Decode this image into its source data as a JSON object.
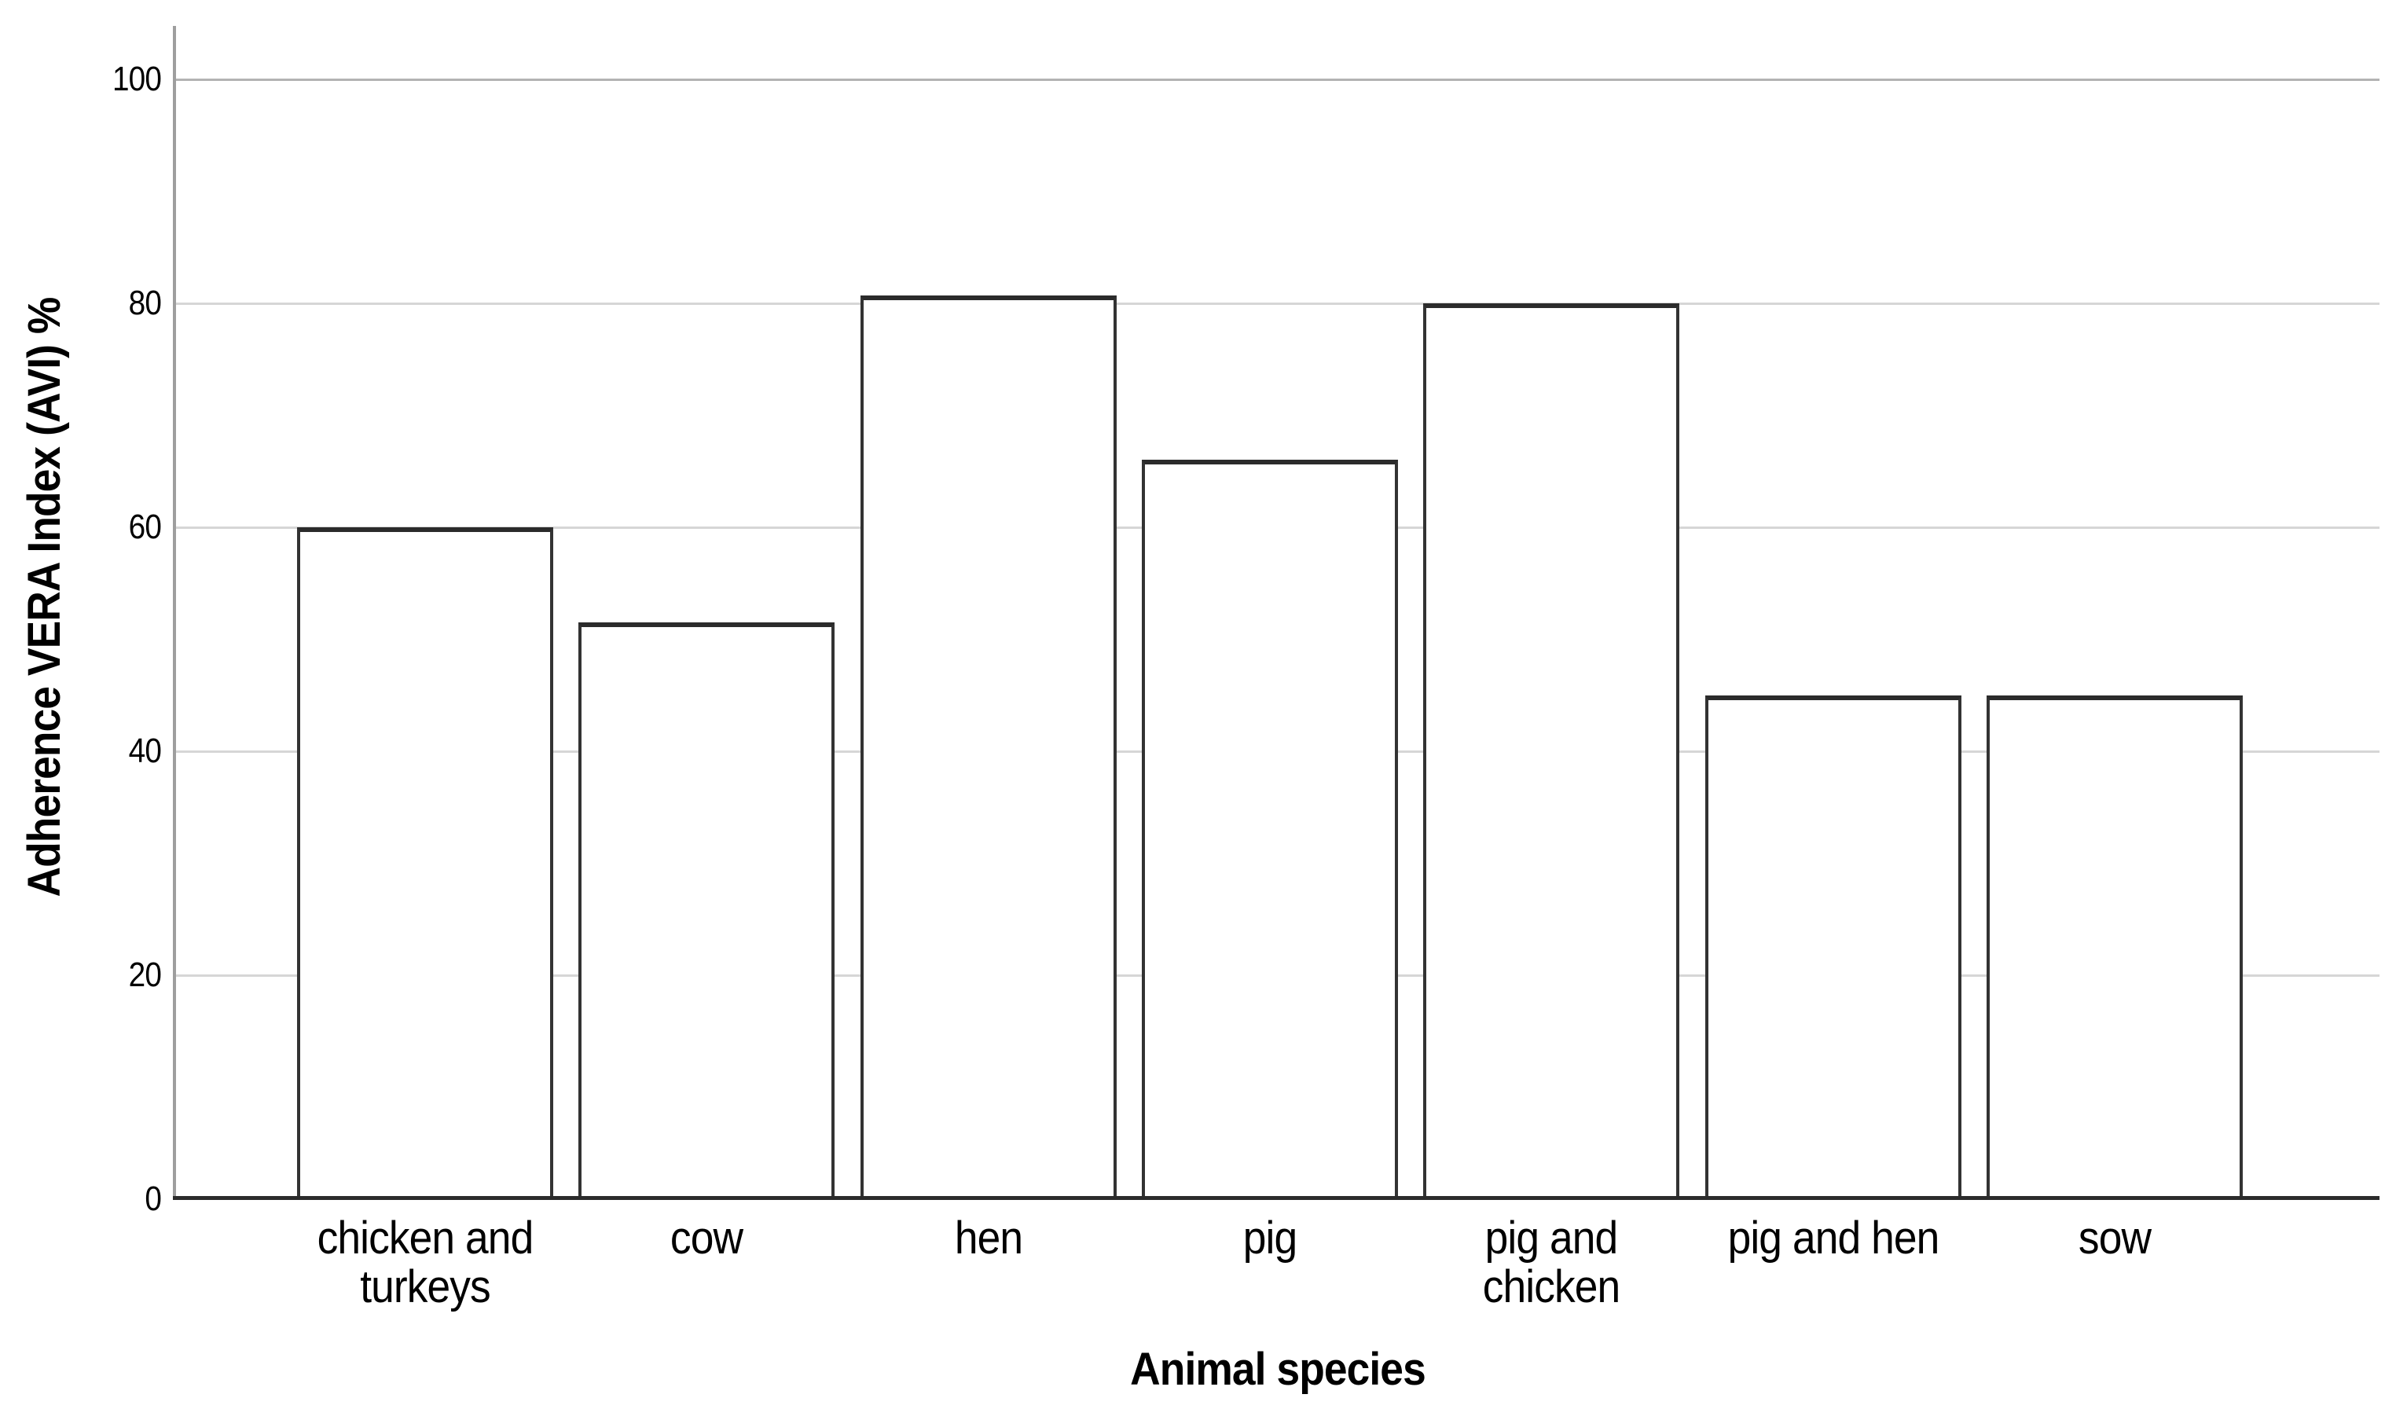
{
  "chart_data": {
    "type": "bar",
    "title": "",
    "xlabel": "Animal species",
    "ylabel": "Adherence VERA Index (AVI) %",
    "categories": [
      "chicken and\nturkeys",
      "cow",
      "hen",
      "pig",
      "pig and\nchicken",
      "pig and hen",
      "sow"
    ],
    "values": [
      60,
      51.5,
      80.7,
      66,
      80,
      45,
      45
    ],
    "ylim": [
      0,
      100
    ],
    "yticks": [
      0,
      20,
      40,
      60,
      80,
      100
    ],
    "grid": true,
    "legend": "none",
    "colors": {
      "bar_fill": "#ffffff",
      "bar_border": "#333333",
      "bar_border_top": "#2b2b2b",
      "gridline": "#d6d6d6",
      "top_gridline": "#b3b3b3",
      "y_axis_line": "#9e9e9e",
      "x_axis_line": "#2b2b2b",
      "text": "#000000"
    }
  }
}
